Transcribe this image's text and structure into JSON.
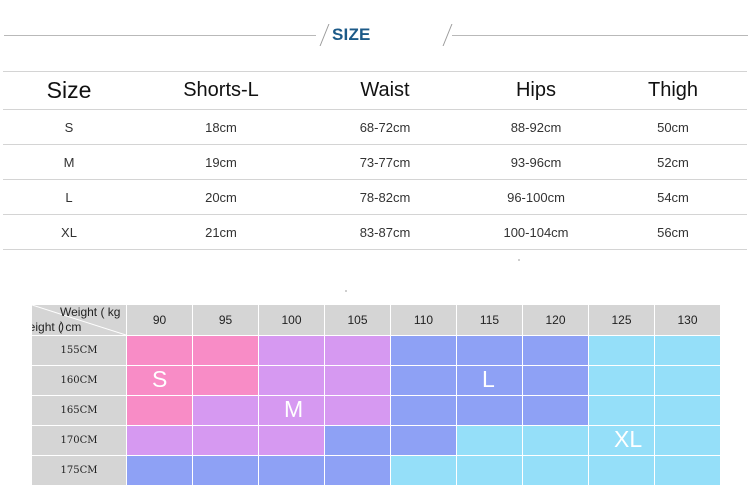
{
  "header": {
    "title": "SIZE"
  },
  "size_table": {
    "columns": [
      "Size",
      "Shorts-L",
      "Waist",
      "Hips",
      "Thigh"
    ],
    "rows": [
      [
        "S",
        "18cm",
        "68-72cm",
        "88-92cm",
        "50cm"
      ],
      [
        "M",
        "19cm",
        "73-77cm",
        "93-96cm",
        "52cm"
      ],
      [
        "L",
        "20cm",
        "78-82cm",
        "96-100cm",
        "54cm"
      ],
      [
        "XL",
        "21cm",
        "83-87cm",
        "100-104cm",
        "56cm"
      ]
    ]
  },
  "weight_height_chart": {
    "weight_label": "Weight ( kg )",
    "height_label": "height ( cm",
    "weights": [
      "90",
      "95",
      "100",
      "105",
      "110",
      "115",
      "120",
      "125",
      "130"
    ],
    "heights": [
      "155CM",
      "160CM",
      "165CM",
      "170CM",
      "175CM"
    ],
    "zone_colors": {
      "S": "#f88cc6",
      "M": "#d699f1",
      "L": "#8ea1f5",
      "XL": "#95dff9"
    },
    "grid": [
      [
        "S",
        "S",
        "M",
        "M",
        "L",
        "L",
        "L",
        "XL",
        "XL"
      ],
      [
        "S",
        "S",
        "M",
        "M",
        "L",
        "L",
        "L",
        "XL",
        "XL"
      ],
      [
        "S",
        "M",
        "M",
        "M",
        "L",
        "L",
        "L",
        "XL",
        "XL"
      ],
      [
        "M",
        "M",
        "M",
        "L",
        "L",
        "XL",
        "XL",
        "XL",
        "XL"
      ],
      [
        "L",
        "L",
        "L",
        "L",
        "XL",
        "XL",
        "XL",
        "XL",
        "XL"
      ]
    ],
    "zone_labels": [
      {
        "text": "S",
        "row": 1,
        "col": 0
      },
      {
        "text": "M",
        "row": 2,
        "col": 2
      },
      {
        "text": "L",
        "row": 1,
        "col": 5
      },
      {
        "text": "XL",
        "row": 3,
        "col": 7
      }
    ]
  }
}
